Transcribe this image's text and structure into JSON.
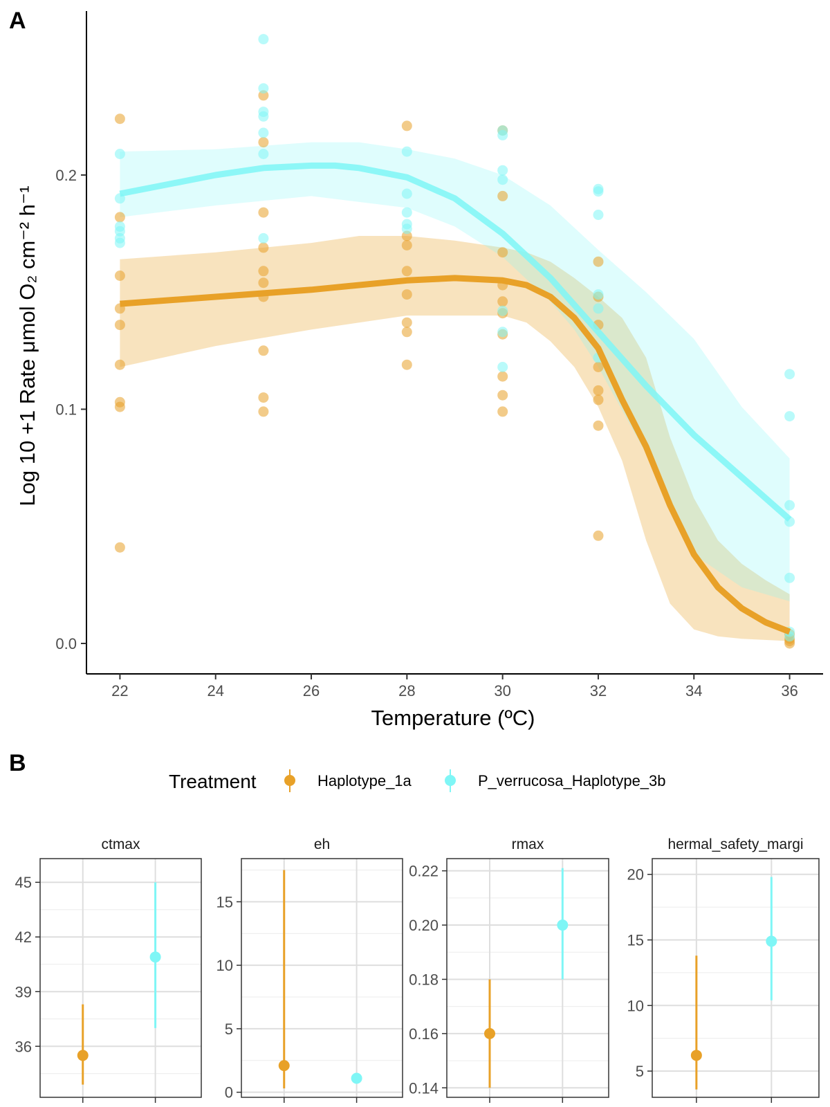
{
  "colors": {
    "haplotype_1a": "#E8A128",
    "haplotype_3b": "#7FF6F6",
    "haplotype_1a_band": "#F5D9A6",
    "haplotype_3b_band": "#CFF8F8",
    "overlap": "#C9DFB8"
  },
  "panel_labels": {
    "a": "A",
    "b": "B"
  },
  "chart_data": [
    {
      "type": "scatter",
      "panel": "A",
      "xlabel": "Temperature (ºC)",
      "ylabel": "Log 10 +1 Rate μmol O₂ cm⁻² h⁻¹",
      "xlim": [
        21.3,
        36.7
      ],
      "ylim": [
        -0.013,
        0.27
      ],
      "xticks": [
        22,
        24,
        26,
        28,
        30,
        32,
        34,
        36
      ],
      "yticks": [
        0.0,
        0.1,
        0.2
      ],
      "ytick_labels": [
        "0.0",
        "0.1",
        "0.2"
      ],
      "grid": false,
      "series": [
        {
          "name": "Haplotype_1a",
          "color": "#E8A128",
          "points": [
            [
              22,
              0.224
            ],
            [
              22,
              0.182
            ],
            [
              22,
              0.157
            ],
            [
              22,
              0.143
            ],
            [
              22,
              0.136
            ],
            [
              22,
              0.119
            ],
            [
              22,
              0.103
            ],
            [
              22,
              0.101
            ],
            [
              22,
              0.041
            ],
            [
              25,
              0.234
            ],
            [
              25,
              0.214
            ],
            [
              25,
              0.184
            ],
            [
              25,
              0.169
            ],
            [
              25,
              0.159
            ],
            [
              25,
              0.154
            ],
            [
              25,
              0.148
            ],
            [
              25,
              0.125
            ],
            [
              25,
              0.105
            ],
            [
              25,
              0.099
            ],
            [
              28,
              0.221
            ],
            [
              28,
              0.174
            ],
            [
              28,
              0.17
            ],
            [
              28,
              0.159
            ],
            [
              28,
              0.149
            ],
            [
              28,
              0.137
            ],
            [
              28,
              0.133
            ],
            [
              28,
              0.119
            ],
            [
              30,
              0.219
            ],
            [
              30,
              0.191
            ],
            [
              30,
              0.167
            ],
            [
              30,
              0.153
            ],
            [
              30,
              0.146
            ],
            [
              30,
              0.141
            ],
            [
              30,
              0.132
            ],
            [
              30,
              0.114
            ],
            [
              30,
              0.106
            ],
            [
              30,
              0.099
            ],
            [
              32,
              0.163
            ],
            [
              32,
              0.148
            ],
            [
              32,
              0.136
            ],
            [
              32,
              0.118
            ],
            [
              32,
              0.108
            ],
            [
              32,
              0.104
            ],
            [
              32,
              0.093
            ],
            [
              32,
              0.046
            ],
            [
              36,
              0.004
            ],
            [
              36,
              0.002
            ],
            [
              36,
              0.001
            ],
            [
              36,
              0.0
            ]
          ],
          "fit": [
            [
              22,
              0.145
            ],
            [
              24,
              0.148
            ],
            [
              26,
              0.151
            ],
            [
              28,
              0.155
            ],
            [
              29,
              0.156
            ],
            [
              30,
              0.155
            ],
            [
              30.5,
              0.153
            ],
            [
              31,
              0.148
            ],
            [
              31.5,
              0.139
            ],
            [
              32,
              0.126
            ],
            [
              32.5,
              0.104
            ],
            [
              33,
              0.084
            ],
            [
              33.5,
              0.059
            ],
            [
              34,
              0.038
            ],
            [
              34.5,
              0.024
            ],
            [
              35,
              0.015
            ],
            [
              35.5,
              0.009
            ],
            [
              36,
              0.005
            ]
          ],
          "band_upper": [
            [
              22,
              0.164
            ],
            [
              24,
              0.167
            ],
            [
              26,
              0.171
            ],
            [
              27,
              0.174
            ],
            [
              28,
              0.174
            ],
            [
              29,
              0.172
            ],
            [
              30,
              0.169
            ],
            [
              30.5,
              0.167
            ],
            [
              31,
              0.163
            ],
            [
              31.5,
              0.156
            ],
            [
              32,
              0.148
            ],
            [
              32.5,
              0.139
            ],
            [
              33,
              0.122
            ],
            [
              33.5,
              0.088
            ],
            [
              34,
              0.062
            ],
            [
              34.5,
              0.044
            ],
            [
              35,
              0.034
            ],
            [
              35.5,
              0.027
            ],
            [
              36,
              0.021
            ]
          ],
          "band_lower": [
            [
              22,
              0.118
            ],
            [
              24,
              0.127
            ],
            [
              26,
              0.134
            ],
            [
              28,
              0.14
            ],
            [
              30,
              0.14
            ],
            [
              30.5,
              0.137
            ],
            [
              31,
              0.129
            ],
            [
              31.5,
              0.118
            ],
            [
              32,
              0.101
            ],
            [
              32.5,
              0.078
            ],
            [
              33,
              0.044
            ],
            [
              33.5,
              0.017
            ],
            [
              34,
              0.006
            ],
            [
              34.5,
              0.003
            ],
            [
              35,
              0.002
            ],
            [
              36,
              0.001
            ]
          ]
        },
        {
          "name": "P_verrucosa_Haplotype_3b",
          "color": "#7FF6F6",
          "points": [
            [
              22,
              0.209
            ],
            [
              22,
              0.19
            ],
            [
              22,
              0.178
            ],
            [
              22,
              0.176
            ],
            [
              22,
              0.173
            ],
            [
              22,
              0.171
            ],
            [
              25,
              0.258
            ],
            [
              25,
              0.237
            ],
            [
              25,
              0.227
            ],
            [
              25,
              0.225
            ],
            [
              25,
              0.218
            ],
            [
              25,
              0.209
            ],
            [
              25,
              0.173
            ],
            [
              28,
              0.21
            ],
            [
              28,
              0.192
            ],
            [
              28,
              0.184
            ],
            [
              28,
              0.179
            ],
            [
              28,
              0.177
            ],
            [
              30,
              0.219
            ],
            [
              30,
              0.217
            ],
            [
              30,
              0.202
            ],
            [
              30,
              0.198
            ],
            [
              30,
              0.142
            ],
            [
              30,
              0.133
            ],
            [
              30,
              0.118
            ],
            [
              32,
              0.194
            ],
            [
              32,
              0.193
            ],
            [
              32,
              0.183
            ],
            [
              32,
              0.149
            ],
            [
              32,
              0.143
            ],
            [
              32,
              0.122
            ],
            [
              36,
              0.115
            ],
            [
              36,
              0.097
            ],
            [
              36,
              0.059
            ],
            [
              36,
              0.052
            ],
            [
              36,
              0.028
            ],
            [
              36,
              0.005
            ],
            [
              36,
              0.003
            ]
          ],
          "fit": [
            [
              22,
              0.192
            ],
            [
              23,
              0.196
            ],
            [
              24,
              0.2
            ],
            [
              25,
              0.203
            ],
            [
              26,
              0.204
            ],
            [
              26.5,
              0.204
            ],
            [
              27,
              0.203
            ],
            [
              28,
              0.199
            ],
            [
              29,
              0.19
            ],
            [
              30,
              0.175
            ],
            [
              31,
              0.156
            ],
            [
              32,
              0.133
            ],
            [
              33,
              0.11
            ],
            [
              34,
              0.089
            ],
            [
              35,
              0.071
            ],
            [
              36,
              0.053
            ]
          ],
          "band_upper": [
            [
              22,
              0.21
            ],
            [
              24,
              0.211
            ],
            [
              26,
              0.214
            ],
            [
              27,
              0.214
            ],
            [
              28,
              0.211
            ],
            [
              29,
              0.207
            ],
            [
              30,
              0.2
            ],
            [
              31,
              0.187
            ],
            [
              32,
              0.168
            ],
            [
              33,
              0.15
            ],
            [
              34,
              0.13
            ],
            [
              35,
              0.101
            ],
            [
              36,
              0.079
            ]
          ],
          "band_lower": [
            [
              22,
              0.182
            ],
            [
              24,
              0.187
            ],
            [
              26,
              0.191
            ],
            [
              28,
              0.186
            ],
            [
              29,
              0.178
            ],
            [
              30,
              0.165
            ],
            [
              31,
              0.146
            ],
            [
              31.5,
              0.134
            ],
            [
              32,
              0.118
            ],
            [
              33,
              0.081
            ],
            [
              33.5,
              0.058
            ],
            [
              34,
              0.038
            ],
            [
              35,
              0.024
            ],
            [
              36,
              0.018
            ]
          ]
        }
      ]
    },
    {
      "type": "scatter",
      "panel": "B",
      "facet": "ctmax",
      "ylim": [
        33.2,
        46.3
      ],
      "yticks": [
        36,
        39,
        42,
        45
      ],
      "ytick_labels": [
        "36",
        "39",
        "42",
        "45"
      ],
      "minor_yticks": [
        34.5,
        37.5,
        40.5,
        43.5
      ],
      "grid": true,
      "series": [
        {
          "name": "Haplotype_1a",
          "x": 1,
          "estimate": 35.5,
          "lower": 33.9,
          "upper": 38.3
        },
        {
          "name": "P_verrucosa_Haplotype_3b",
          "x": 2,
          "estimate": 40.9,
          "lower": 37.0,
          "upper": 45.0
        }
      ]
    },
    {
      "type": "scatter",
      "panel": "B",
      "facet": "eh",
      "ylim": [
        -0.4,
        18.4
      ],
      "yticks": [
        0,
        5,
        10,
        15
      ],
      "ytick_labels": [
        "0",
        "5",
        "10",
        "15"
      ],
      "minor_yticks": [
        2.5,
        7.5,
        12.5,
        17.5
      ],
      "grid": true,
      "series": [
        {
          "name": "Haplotype_1a",
          "x": 1,
          "estimate": 2.1,
          "lower": 0.3,
          "upper": 17.5
        },
        {
          "name": "P_verrucosa_Haplotype_3b",
          "x": 2,
          "estimate": 1.1,
          "lower": 1.1,
          "upper": 1.1
        }
      ]
    },
    {
      "type": "scatter",
      "panel": "B",
      "facet": "rmax",
      "ylim": [
        0.1365,
        0.2245
      ],
      "yticks": [
        0.14,
        0.16,
        0.18,
        0.2,
        0.22
      ],
      "ytick_labels": [
        "0.14",
        "0.16",
        "0.18",
        "0.20",
        "0.22"
      ],
      "minor_yticks": [
        0.15,
        0.17,
        0.19,
        0.21
      ],
      "grid": true,
      "series": [
        {
          "name": "Haplotype_1a",
          "x": 1,
          "estimate": 0.16,
          "lower": 0.14,
          "upper": 0.18
        },
        {
          "name": "P_verrucosa_Haplotype_3b",
          "x": 2,
          "estimate": 0.2,
          "lower": 0.18,
          "upper": 0.221
        }
      ]
    },
    {
      "type": "scatter",
      "panel": "B",
      "facet": "hermal_safety_margi",
      "ylim": [
        3.0,
        21.2
      ],
      "yticks": [
        5,
        10,
        15,
        20
      ],
      "ytick_labels": [
        "5",
        "10",
        "15",
        "20"
      ],
      "minor_yticks": [
        7.5,
        12.5,
        17.5
      ],
      "grid": true,
      "series": [
        {
          "name": "Haplotype_1a",
          "x": 1,
          "estimate": 6.2,
          "lower": 3.6,
          "upper": 13.8
        },
        {
          "name": "P_verrucosa_Haplotype_3b",
          "x": 2,
          "estimate": 14.9,
          "lower": 10.4,
          "upper": 19.8
        }
      ]
    }
  ],
  "legend": {
    "title": "Treatment",
    "placement": "top",
    "items": [
      {
        "label": "Haplotype_1a",
        "color": "#E8A128"
      },
      {
        "label": "P_verrucosa_Haplotype_3b",
        "color": "#7FF6F6"
      }
    ]
  }
}
